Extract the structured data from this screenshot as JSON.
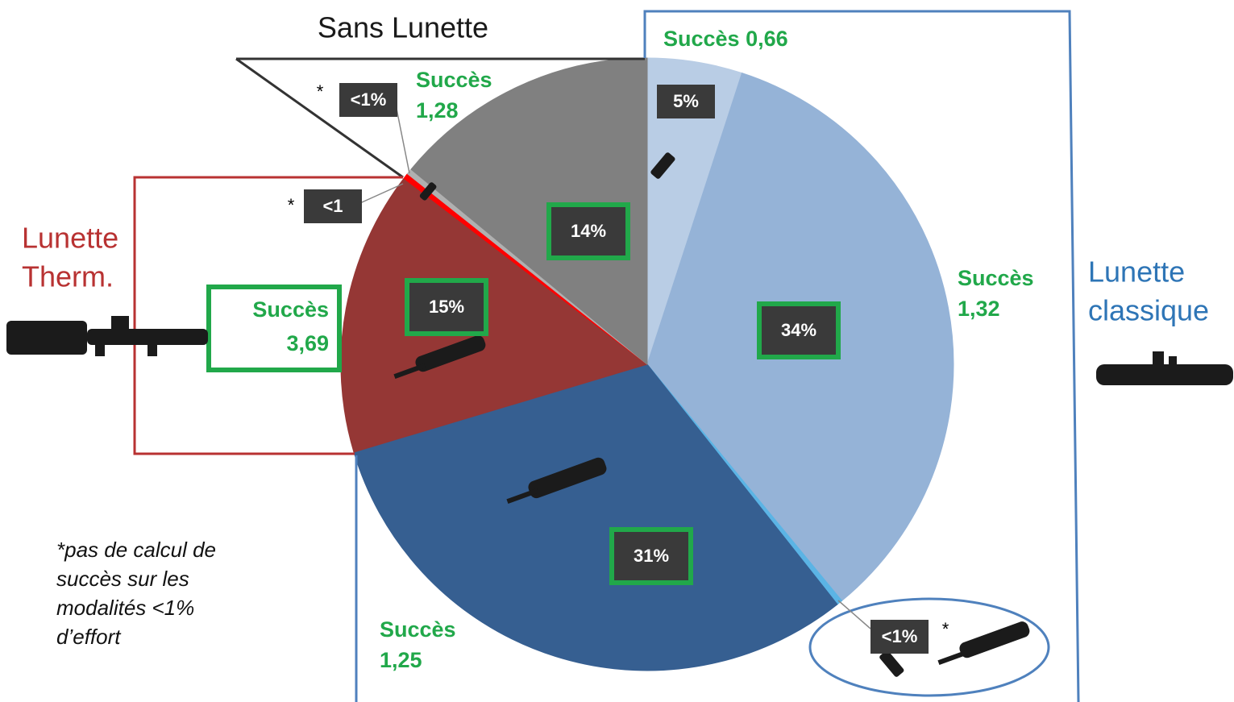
{
  "chart_data": {
    "type": "pie",
    "values": [
      5,
      34,
      0.3,
      31,
      15,
      0.3,
      0.3,
      14
    ],
    "value_labels": [
      "5%",
      "34%",
      "<1%",
      "31%",
      "15%",
      "<1",
      "<1%",
      "14%"
    ],
    "colors": [
      "#b9cde5",
      "#95b3d7",
      "#5bb4e5",
      "#365f91",
      "#953735",
      "#ff0000",
      "#b0b0b0",
      "#808080"
    ],
    "groups": [
      {
        "label": [
          "Sans Lunette"
        ],
        "color": "#1a1a1a"
      },
      {
        "label": [
          "Lunette",
          "classique"
        ],
        "color": "#2e75b6"
      },
      {
        "label": [
          "Lunette",
          "Therm."
        ],
        "color": "#b83232"
      }
    ],
    "success_labels": [
      [
        "Succès 0,66"
      ],
      [
        "Succès",
        "1,28"
      ],
      [
        "Succès",
        "1,32"
      ],
      [
        "Succès",
        "3,69"
      ],
      [
        "Succès",
        "1,25"
      ]
    ],
    "asterisks": [
      "*",
      "*",
      "*"
    ],
    "footnote": [
      "*pas de calcul de",
      "succès sur les",
      "modalités <1%",
      "d’effort"
    ]
  }
}
